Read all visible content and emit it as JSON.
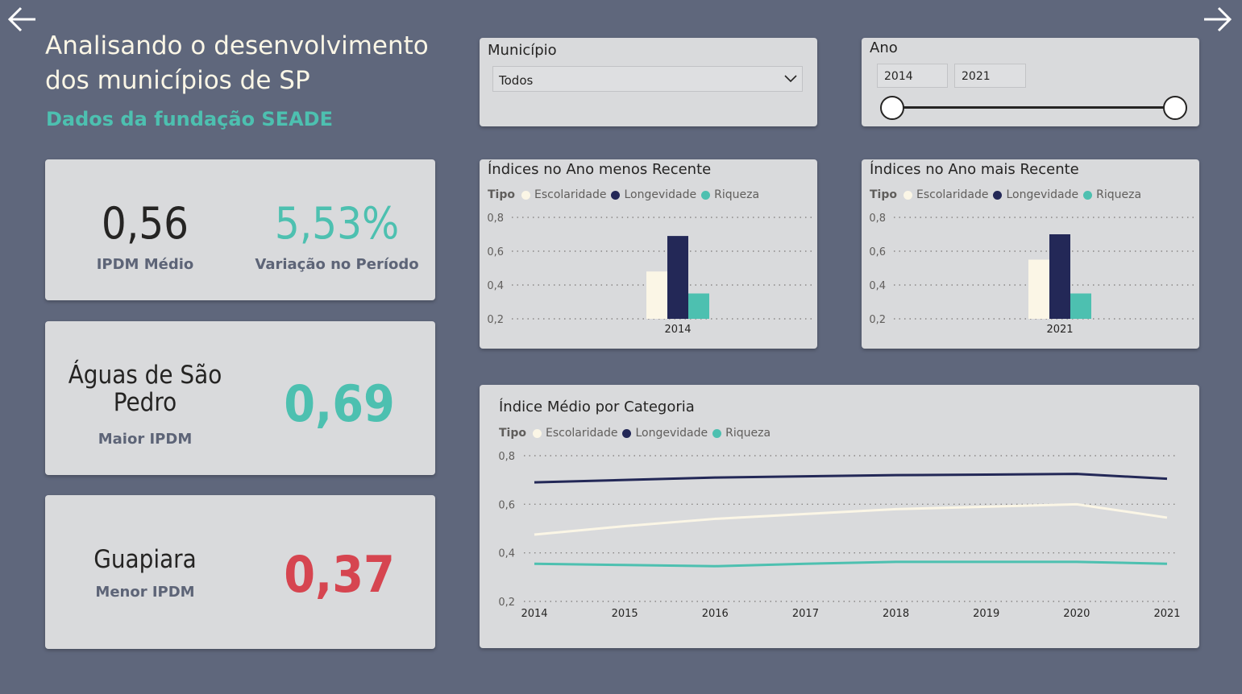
{
  "header": {
    "title": "Analisando o desenvolvimento dos municípios de SP",
    "subtitle": "Dados da fundação SEADE"
  },
  "nav": {
    "back_icon": "arrow-left-icon",
    "forward_icon": "arrow-right-icon"
  },
  "kpis": {
    "ipdm_medio": {
      "value": "0,56",
      "label": "IPDM Médio"
    },
    "variacao": {
      "value": "5,53%",
      "label": "Variação no Período"
    },
    "maior": {
      "municipio": "Águas de São Pedro",
      "value": "0,69",
      "label": "Maior IPDM"
    },
    "menor": {
      "municipio": "Guapiara",
      "value": "0,37",
      "label": "Menor IPDM"
    }
  },
  "filters": {
    "municipio": {
      "title": "Município",
      "selected": "Todos"
    },
    "ano": {
      "title": "Ano",
      "start": "2014",
      "end": "2021",
      "range": [
        2014,
        2021
      ]
    }
  },
  "colors": {
    "escolaridade": "#fbf6e6",
    "longevidade": "#232857",
    "riqueza": "#4dc0b0",
    "highlight_green": "#4dc0b0",
    "highlight_red": "#d64550"
  },
  "legend": {
    "title": "Tipo",
    "items": [
      "Escolaridade",
      "Longevidade",
      "Riqueza"
    ]
  },
  "chart_data": [
    {
      "type": "bar",
      "title": "Índices no Ano menos Recente",
      "categories": [
        "2014"
      ],
      "series": [
        {
          "name": "Escolaridade",
          "values": [
            0.48
          ]
        },
        {
          "name": "Longevidade",
          "values": [
            0.69
          ]
        },
        {
          "name": "Riqueza",
          "values": [
            0.35
          ]
        }
      ],
      "ylim": [
        0.2,
        0.8
      ],
      "yticks": [
        "0,2",
        "0,4",
        "0,6",
        "0,8"
      ],
      "grid": true,
      "legend_position": "top-left"
    },
    {
      "type": "bar",
      "title": "Índices no Ano mais Recente",
      "categories": [
        "2021"
      ],
      "series": [
        {
          "name": "Escolaridade",
          "values": [
            0.55
          ]
        },
        {
          "name": "Longevidade",
          "values": [
            0.7
          ]
        },
        {
          "name": "Riqueza",
          "values": [
            0.35
          ]
        }
      ],
      "ylim": [
        0.2,
        0.8
      ],
      "yticks": [
        "0,2",
        "0,4",
        "0,6",
        "0,8"
      ],
      "grid": true,
      "legend_position": "top-left"
    },
    {
      "type": "line",
      "title": "Índice Médio por Categoria",
      "x": [
        "2014",
        "2015",
        "2016",
        "2017",
        "2018",
        "2019",
        "2020",
        "2021"
      ],
      "series": [
        {
          "name": "Escolaridade",
          "values": [
            0.475,
            0.51,
            0.54,
            0.56,
            0.58,
            0.59,
            0.6,
            0.545
          ]
        },
        {
          "name": "Longevidade",
          "values": [
            0.69,
            0.7,
            0.71,
            0.715,
            0.72,
            0.722,
            0.725,
            0.705
          ]
        },
        {
          "name": "Riqueza",
          "values": [
            0.355,
            0.35,
            0.345,
            0.355,
            0.363,
            0.363,
            0.363,
            0.355
          ]
        }
      ],
      "ylim": [
        0.2,
        0.8
      ],
      "yticks": [
        "0,2",
        "0,4",
        "0,6",
        "0,8"
      ],
      "grid": true,
      "legend_position": "top-left"
    }
  ]
}
